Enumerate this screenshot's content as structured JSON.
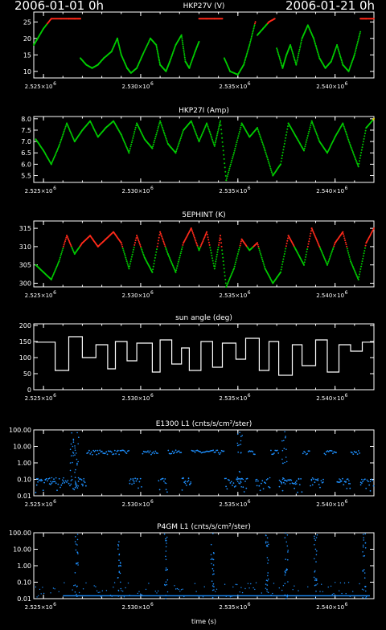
{
  "header": {
    "start_time": "2006-01-01  0h",
    "end_time": "2006-01-21  0h"
  },
  "x_axis": {
    "min": 2524500,
    "max": 2542000,
    "major_ticks": [
      {
        "value": 2525000,
        "label": "2.525×10"
      },
      {
        "value": 2530000,
        "label": "2.530×10"
      },
      {
        "value": 2535000,
        "label": "2.535×10"
      },
      {
        "value": 2540000,
        "label": "2.540×10"
      }
    ],
    "exponent": "6",
    "xlabel": "time (s)"
  },
  "chart_data": [
    {
      "type": "line",
      "title": "HKP27V (V)",
      "ylim": [
        8,
        28
      ],
      "yticks": [
        {
          "value": 10,
          "label": "10"
        },
        {
          "value": 15,
          "label": "15"
        },
        {
          "value": 20,
          "label": "20"
        },
        {
          "value": 25,
          "label": "25"
        }
      ],
      "thresholds": {
        "high": 24.5
      },
      "colors": {
        "normal": "#00cc00",
        "alert": "#ff2a1a"
      },
      "series": [
        {
          "x": [
            2524500,
            2524700,
            2525000,
            2525400,
            2525900,
            2526300,
            2526600,
            2526900
          ],
          "y": [
            18,
            20,
            23,
            26,
            26,
            26,
            26,
            26
          ]
        },
        {
          "x": [
            2526900,
            2527200,
            2527500,
            2527800,
            2528100,
            2528500,
            2528800,
            2529000,
            2529300,
            2529500,
            2529800,
            2530100,
            2530500,
            2530800,
            2531000,
            2531300,
            2531500,
            2531800,
            2532100,
            2532300,
            2532500,
            2532800,
            2533000
          ],
          "y": [
            14,
            12,
            11,
            12,
            14,
            16,
            20,
            15,
            11,
            9.5,
            11,
            15,
            20,
            18,
            12,
            10,
            13,
            18,
            21,
            13,
            11,
            16,
            19
          ]
        },
        {
          "x": [
            2533000,
            2533400,
            2533800,
            2534200
          ],
          "y": [
            26,
            26,
            26,
            26
          ]
        },
        {
          "x": [
            2534300,
            2534600,
            2535000,
            2535300,
            2535600,
            2535900
          ],
          "y": [
            14,
            10,
            9,
            12,
            18,
            25
          ]
        },
        {
          "x": [
            2536000,
            2536300,
            2536600,
            2536900
          ],
          "y": [
            21,
            23,
            25,
            26
          ]
        },
        {
          "x": [
            2537000,
            2537300,
            2537500,
            2537700,
            2538000,
            2538300,
            2538600,
            2538900,
            2539200,
            2539500,
            2539800,
            2540100,
            2540400,
            2540700,
            2541000,
            2541300
          ],
          "y": [
            17,
            11,
            15,
            18,
            12,
            20,
            24,
            20,
            14,
            11,
            13,
            18,
            12,
            10,
            15,
            22
          ]
        },
        {
          "x": [
            2541300,
            2541600,
            2542000
          ],
          "y": [
            26,
            26,
            26
          ]
        }
      ]
    },
    {
      "type": "line",
      "title": "HKP27I (Amp)",
      "ylim": [
        5.2,
        8.1
      ],
      "yticks": [
        {
          "value": 5.5,
          "label": "5.5"
        },
        {
          "value": 6.0,
          "label": "6.0"
        },
        {
          "value": 6.5,
          "label": "6.5"
        },
        {
          "value": 7.0,
          "label": "7.0"
        },
        {
          "value": 7.5,
          "label": "7.5"
        },
        {
          "value": 8.0,
          "label": "8.0"
        }
      ],
      "thresholds": {
        "high": 7.95
      },
      "colors": {
        "normal": "#00cc00",
        "alert": "#e8d800"
      },
      "series": [
        {
          "x": [
            2524600,
            2525000,
            2525400,
            2525800,
            2526200,
            2526600,
            2527000,
            2527400,
            2527800,
            2528200,
            2528600,
            2529000,
            2529400,
            2529800,
            2530200,
            2530600,
            2531000,
            2531400,
            2531800,
            2532200,
            2532600,
            2533000,
            2533400,
            2533800,
            2534100,
            2534400,
            2534800,
            2535200,
            2535600,
            2536000,
            2536400,
            2536800,
            2537200,
            2537600,
            2538000,
            2538400,
            2538800,
            2539200,
            2539600,
            2540000,
            2540400,
            2540800,
            2541200,
            2541600,
            2542000
          ],
          "y": [
            7.1,
            6.6,
            6.0,
            6.8,
            7.8,
            7.0,
            7.5,
            7.9,
            7.2,
            7.6,
            7.9,
            7.3,
            6.5,
            7.8,
            7.1,
            6.7,
            7.9,
            6.9,
            6.5,
            7.5,
            7.9,
            7.0,
            7.8,
            6.8,
            7.9,
            5.3,
            6.5,
            7.8,
            7.2,
            7.6,
            6.6,
            5.5,
            6.0,
            7.8,
            7.2,
            6.6,
            7.9,
            7.0,
            6.5,
            7.2,
            7.8,
            6.8,
            5.9,
            7.6,
            8.0
          ]
        }
      ]
    },
    {
      "type": "line",
      "title": "5EPHINT (K)",
      "ylim": [
        299,
        317
      ],
      "yticks": [
        {
          "value": 300,
          "label": "300"
        },
        {
          "value": 305,
          "label": "305"
        },
        {
          "value": 310,
          "label": "310"
        },
        {
          "value": 315,
          "label": "315"
        }
      ],
      "thresholds": {
        "high": 310
      },
      "colors": {
        "normal": "#00cc00",
        "alert": "#ff2a1a"
      },
      "series": [
        {
          "x": [
            2524600,
            2525000,
            2525400,
            2525800,
            2526200,
            2526600,
            2527000,
            2527400,
            2527800,
            2528200,
            2528600,
            2529000,
            2529400,
            2529800,
            2530200,
            2530600,
            2531000,
            2531400,
            2531800,
            2532200,
            2532600,
            2533000,
            2533400,
            2533800,
            2534100,
            2534400,
            2534800,
            2535200,
            2535600,
            2536000,
            2536400,
            2536800,
            2537200,
            2537600,
            2538000,
            2538400,
            2538800,
            2539200,
            2539600,
            2540000,
            2540400,
            2540800,
            2541200,
            2541600,
            2542000
          ],
          "y": [
            305,
            303,
            301,
            306,
            313,
            308,
            311,
            313,
            310,
            312,
            314,
            311,
            304,
            313,
            307,
            303,
            314,
            308,
            303,
            311,
            315,
            309,
            314,
            304,
            313,
            299,
            304,
            312,
            309,
            311,
            304,
            300,
            303,
            313,
            309,
            305,
            315,
            310,
            305,
            311,
            314,
            306,
            301,
            311,
            315
          ]
        }
      ]
    },
    {
      "type": "line",
      "title": "sun angle (deg)",
      "ylim": [
        0,
        205
      ],
      "yticks": [
        {
          "value": 0,
          "label": "0"
        },
        {
          "value": 50,
          "label": "50"
        },
        {
          "value": 100,
          "label": "100"
        },
        {
          "value": 150,
          "label": "150"
        },
        {
          "value": 200,
          "label": "200"
        }
      ],
      "colors": {
        "normal": "#ffffff"
      },
      "x": [
        2524600,
        2525600,
        2525600,
        2526300,
        2526300,
        2527000,
        2527000,
        2527700,
        2527700,
        2528300,
        2528300,
        2528700,
        2528700,
        2529300,
        2529300,
        2529800,
        2529800,
        2530600,
        2530600,
        2531000,
        2531000,
        2531600,
        2531600,
        2532100,
        2532100,
        2532500,
        2532500,
        2533100,
        2533100,
        2533700,
        2533700,
        2534200,
        2534200,
        2534900,
        2534900,
        2535400,
        2535400,
        2536100,
        2536100,
        2536600,
        2536600,
        2537100,
        2537100,
        2537800,
        2537800,
        2538300,
        2538300,
        2539000,
        2539000,
        2539600,
        2539600,
        2540200,
        2540200,
        2540800,
        2540800,
        2541400,
        2541400,
        2542000
      ],
      "y": [
        148,
        148,
        60,
        60,
        165,
        165,
        100,
        100,
        140,
        140,
        65,
        65,
        150,
        150,
        90,
        90,
        145,
        145,
        55,
        55,
        155,
        155,
        80,
        80,
        130,
        130,
        60,
        60,
        150,
        150,
        70,
        70,
        145,
        145,
        95,
        95,
        160,
        160,
        60,
        60,
        150,
        150,
        45,
        45,
        140,
        140,
        75,
        75,
        155,
        155,
        55,
        55,
        140,
        140,
        120,
        120,
        148,
        148
      ]
    },
    {
      "type": "scatter",
      "title": "E1300 L1 (cnts/s/cm²/ster)",
      "ylog": true,
      "ylim": [
        0.01,
        100
      ],
      "yticks": [
        {
          "value": 0.01,
          "label": "0.01"
        },
        {
          "value": 0.1,
          "label": "0.10"
        },
        {
          "value": 1,
          "label": "1.00"
        },
        {
          "value": 10,
          "label": "10.00"
        },
        {
          "value": 100,
          "label": "100.00"
        }
      ],
      "colors": {
        "normal": "#1e90ff"
      },
      "pattern": "plateau",
      "x_high_windows": [
        [
          2527200,
          2529400
        ],
        [
          2530100,
          2530900
        ],
        [
          2531400,
          2532100
        ],
        [
          2532600,
          2534300
        ],
        [
          2535500,
          2535900
        ],
        [
          2536700,
          2537100
        ],
        [
          2538300,
          2538700
        ],
        [
          2539400,
          2540100
        ],
        [
          2540800,
          2541300
        ]
      ],
      "plateau_value": 4.5,
      "baseline_value": 0.04
    },
    {
      "type": "scatter",
      "title": "P4GM L1 (cnts/s/cm²/ster)",
      "ylog": true,
      "ylim": [
        0.01,
        100
      ],
      "yticks": [
        {
          "value": 0.01,
          "label": "0.01"
        },
        {
          "value": 0.1,
          "label": "0.10"
        },
        {
          "value": 1,
          "label": "1.00"
        },
        {
          "value": 10,
          "label": "10.00"
        },
        {
          "value": 100,
          "label": "100.00"
        }
      ],
      "colors": {
        "normal": "#1e90ff"
      },
      "pattern": "spikes",
      "spike_x": [
        2526700,
        2528900,
        2531300,
        2533700,
        2536500,
        2537500,
        2539000,
        2541500
      ],
      "baseline_value": 0.015
    }
  ]
}
